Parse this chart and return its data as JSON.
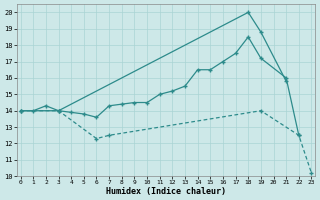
{
  "line1_x": [
    0,
    3,
    18,
    19,
    21
  ],
  "line1_y": [
    14.0,
    14.0,
    20.0,
    18.8,
    15.8
  ],
  "line2_x": [
    0,
    1,
    2,
    3,
    4,
    5,
    6,
    7,
    8,
    9,
    10,
    11,
    12,
    13,
    14,
    15,
    16,
    17,
    18,
    19,
    21,
    22
  ],
  "line2_y": [
    14.0,
    14.0,
    14.3,
    14.0,
    13.9,
    13.8,
    13.6,
    14.3,
    14.4,
    14.5,
    14.5,
    15.0,
    15.2,
    15.5,
    16.5,
    16.5,
    17.0,
    17.5,
    18.5,
    17.2,
    16.0,
    12.5
  ],
  "line3_x": [
    0,
    3,
    6,
    7,
    19,
    22,
    23
  ],
  "line3_y": [
    14.0,
    14.0,
    12.3,
    12.5,
    14.0,
    12.5,
    10.2
  ],
  "color": "#2d8b8b",
  "bg_color": "#cde8e8",
  "grid_color": "#aad4d4",
  "xlabel": "Humidex (Indice chaleur)",
  "xlim": [
    0,
    23
  ],
  "ylim": [
    10,
    20.5
  ],
  "yticks": [
    10,
    11,
    12,
    13,
    14,
    15,
    16,
    17,
    18,
    19,
    20
  ],
  "xticks": [
    0,
    1,
    2,
    3,
    4,
    5,
    6,
    7,
    8,
    9,
    10,
    11,
    12,
    13,
    14,
    15,
    16,
    17,
    18,
    19,
    20,
    21,
    22,
    23
  ]
}
